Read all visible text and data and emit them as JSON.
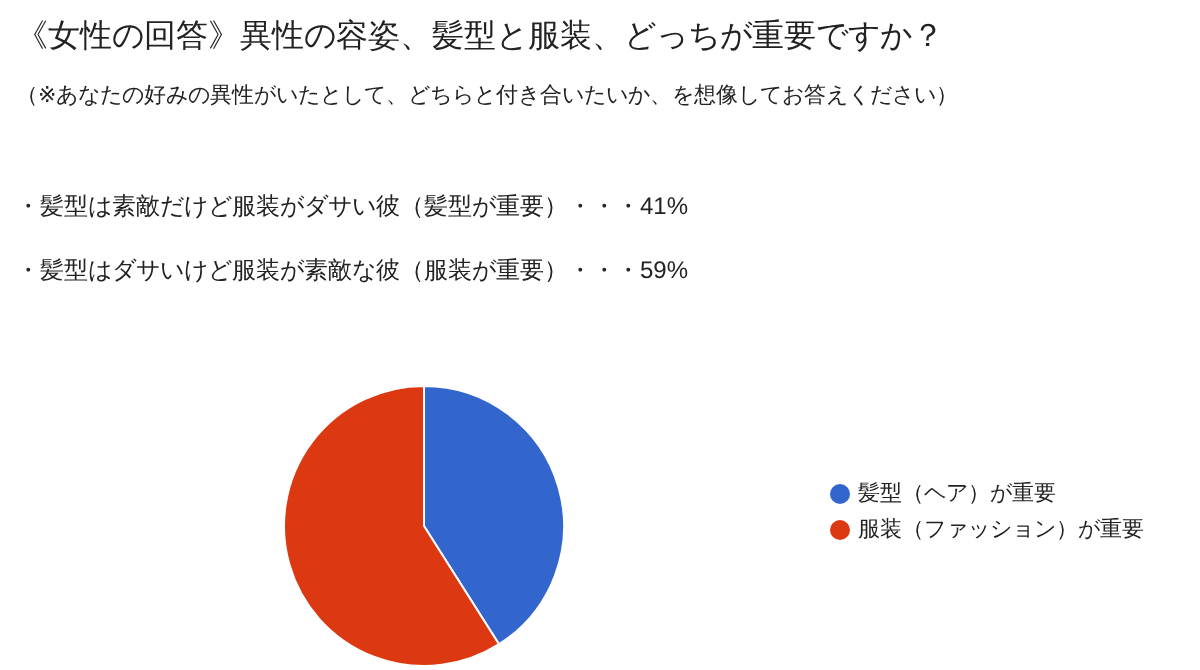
{
  "chart_data": {
    "type": "pie",
    "title": "《女性の回答》異性の容姿、髪型と服装、どっちが重要ですか？",
    "subtitle": "（※あなたの好みの異性がいたとして、どちらと付き合いたいか、を想像してお答えください）",
    "annotations": [
      "・髪型は素敵だけど服装がダサい彼（髪型が重要）・・・41%",
      "・髪型はダサいけど服装が素敵な彼（服装が重要）・・・59%"
    ],
    "categories": [
      "髪型（ヘア）が重要",
      "服装（ファッション）が重要"
    ],
    "values": [
      41,
      59
    ],
    "colors": [
      "#3366cc",
      "#dc3912"
    ],
    "legend": "right"
  }
}
